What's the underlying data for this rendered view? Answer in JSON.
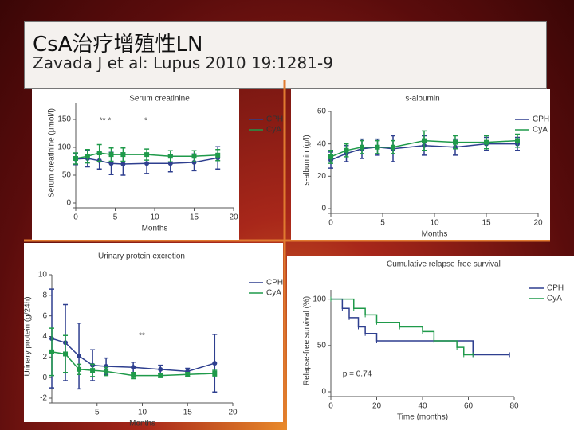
{
  "slide": {
    "title": "CsA治疗增殖性LN",
    "citation": "Zavada J et al: Lupus 2010 19:1281-9"
  },
  "chart_data": [
    {
      "type": "line",
      "title": "Serum creatinine",
      "xlabel": "Months",
      "ylabel": "Serum creatinine (μmol/l)",
      "x": [
        0,
        1.5,
        3,
        4.5,
        6,
        9,
        12,
        15,
        18
      ],
      "xlim": [
        0,
        20
      ],
      "xticks": [
        0,
        5,
        10,
        15,
        20
      ],
      "ylim": [
        0,
        180
      ],
      "yticks": [
        0,
        50,
        100,
        150
      ],
      "annotations": [
        "** *",
        "*"
      ],
      "series": [
        {
          "name": "CPH",
          "color": "#2e3f8f",
          "marker": "circle",
          "values": [
            79,
            80,
            76,
            71,
            70,
            71,
            71,
            73,
            81
          ],
          "errors": [
            10,
            15,
            15,
            20,
            20,
            18,
            15,
            15,
            20
          ]
        },
        {
          "name": "CyA",
          "color": "#1f9a4a",
          "marker": "square",
          "values": [
            80,
            84,
            90,
            87,
            87,
            87,
            84,
            84,
            86
          ],
          "errors": [
            10,
            12,
            15,
            12,
            12,
            10,
            10,
            10,
            10
          ]
        }
      ]
    },
    {
      "type": "line",
      "title": "s-albumin",
      "xlabel": "Months",
      "ylabel": "s-albumin (g/l)",
      "x": [
        0,
        1.5,
        3,
        4.5,
        6,
        9,
        12,
        15,
        18
      ],
      "xlim": [
        0,
        20
      ],
      "xticks": [
        0,
        5,
        10,
        15,
        20
      ],
      "ylim": [
        0,
        60
      ],
      "yticks": [
        0,
        20,
        40,
        60
      ],
      "annotations": [],
      "series": [
        {
          "name": "CPH",
          "color": "#2e3f8f",
          "marker": "circle",
          "values": [
            30,
            34,
            37,
            38,
            37,
            39,
            38,
            40,
            40
          ],
          "errors": [
            5,
            5,
            6,
            5,
            8,
            6,
            5,
            4,
            4
          ]
        },
        {
          "name": "CyA",
          "color": "#1f9a4a",
          "marker": "square",
          "values": [
            32,
            36,
            38,
            38,
            38,
            42,
            41,
            41,
            42
          ],
          "errors": [
            4,
            4,
            4,
            4,
            4,
            6,
            4,
            4,
            4
          ]
        }
      ]
    },
    {
      "type": "line",
      "title": "Urinary protein excretion",
      "xlabel": "Months",
      "ylabel": "Urinary protein (g/24h)",
      "x": [
        0,
        1.5,
        3,
        4.5,
        6,
        9,
        12,
        15,
        18
      ],
      "xlim": [
        0,
        20
      ],
      "xticks": [
        5,
        10,
        15,
        20
      ],
      "ylim": [
        -2,
        10
      ],
      "yticks": [
        -2,
        0,
        2,
        4,
        6,
        8,
        10
      ],
      "annotations": [
        "**"
      ],
      "series": [
        {
          "name": "CPH",
          "color": "#2e3f8f",
          "marker": "circle",
          "values": [
            3.8,
            3.4,
            2.1,
            1.2,
            1.1,
            1.0,
            0.8,
            0.6,
            1.4
          ],
          "errors": [
            4.8,
            3.7,
            3.2,
            1.5,
            0.8,
            0.5,
            0.4,
            0.3,
            2.8
          ]
        },
        {
          "name": "CyA",
          "color": "#1f9a4a",
          "marker": "square",
          "values": [
            2.5,
            2.3,
            0.8,
            0.7,
            0.6,
            0.2,
            0.2,
            0.3,
            0.4
          ],
          "errors": [
            2.3,
            1.8,
            0.5,
            0.6,
            0.4,
            0.3,
            0.2,
            0.2,
            0.3
          ]
        }
      ]
    },
    {
      "type": "step",
      "title": "Cumulative relapse-free survival",
      "xlabel": "Time (months)",
      "ylabel": "Relapse-free survival (%)",
      "xlim": [
        0,
        80
      ],
      "xticks": [
        0,
        20,
        40,
        60,
        80
      ],
      "ylim": [
        0,
        110
      ],
      "yticks": [
        0,
        50,
        100
      ],
      "annotations": [
        "p = 0.74"
      ],
      "series": [
        {
          "name": "CPH",
          "color": "#2e3f8f",
          "x": [
            0,
            5,
            8,
            12,
            15,
            20,
            62,
            78
          ],
          "values": [
            100,
            90,
            80,
            70,
            63,
            55,
            40,
            40
          ]
        },
        {
          "name": "CyA",
          "color": "#1f9a4a",
          "x": [
            0,
            10,
            15,
            20,
            30,
            40,
            45,
            55,
            58,
            62
          ],
          "values": [
            100,
            90,
            83,
            75,
            70,
            65,
            55,
            48,
            40,
            40
          ]
        }
      ]
    }
  ]
}
